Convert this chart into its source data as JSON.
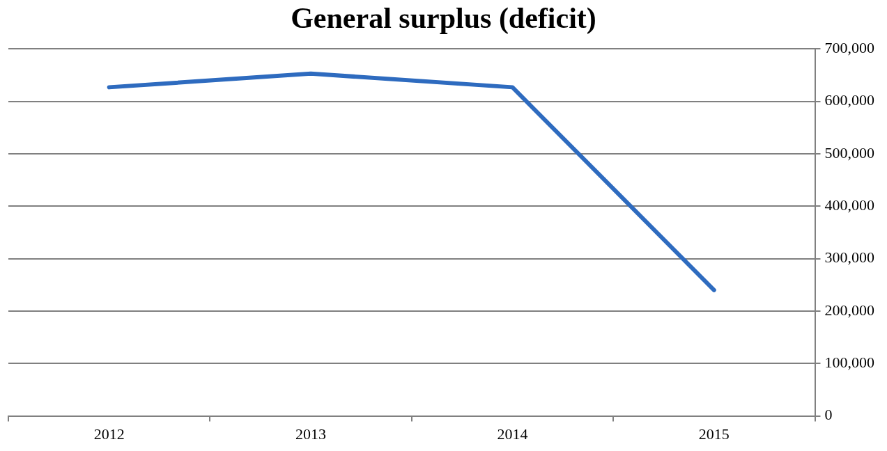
{
  "chart_data": {
    "type": "line",
    "title": "General surplus (deficit)",
    "categories": [
      "2012",
      "2013",
      "2014",
      "2015"
    ],
    "series": [
      {
        "color": "#2e6bbf",
        "values": [
          627000,
          653000,
          627000,
          240000
        ]
      }
    ],
    "ylim": [
      0,
      700000
    ],
    "yticks": [
      0,
      {
        "value": 100000,
        "label": "100,000"
      },
      {
        "value": 200000,
        "label": "200,000"
      },
      {
        "value": 300000,
        "label": "300,000"
      },
      {
        "value": 400000,
        "label": "400,000"
      },
      {
        "value": 500000,
        "label": "500,000"
      },
      {
        "value": 600000,
        "label": "600,000"
      },
      {
        "value": 700000,
        "label": "700,000"
      }
    ],
    "grid": "y",
    "legend": false,
    "marker": "none",
    "line_style": "solid"
  }
}
